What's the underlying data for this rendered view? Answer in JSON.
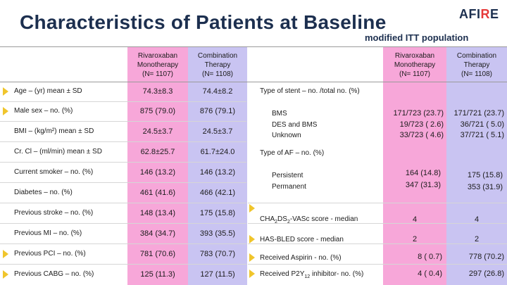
{
  "title": "Characteristics of Patients at Baseline",
  "subtitle": "modified ITT population",
  "logo": {
    "part1": "AFI",
    "part2": "R",
    "part3": "E"
  },
  "headers": {
    "mono": [
      "Rivaroxaban",
      "Monotherapy",
      "(N= 1107)"
    ],
    "combo": [
      "Combination",
      "Therapy",
      "(N= 1108)"
    ]
  },
  "left_rows": [
    {
      "label": "Age – (yr) mean ± SD",
      "mono": "74.3±8.3",
      "combo": "74.4±8.2"
    },
    {
      "label": "Male sex – no. (%)",
      "mono": "875 (79.0)",
      "combo": "876 (79.1)"
    },
    {
      "label": "BMI – (kg/m²) mean ± SD",
      "mono": "24.5±3.7",
      "combo": "24.5±3.7"
    },
    {
      "label": "Cr. Cl – (ml/min) mean ± SD",
      "mono": "62.8±25.7",
      "combo": "61.7±24.0"
    },
    {
      "label": "Current smoker – no. (%)",
      "mono": "146 (13.2)",
      "combo": "146 (13.2)"
    },
    {
      "label": "Diabetes – no. (%)",
      "mono": "461 (41.6)",
      "combo": "466 (42.1)"
    },
    {
      "label": "Previous stroke – no. (%)",
      "mono": "148 (13.4)",
      "combo": "175 (15.8)"
    },
    {
      "label": "Previous MI – no. (%)",
      "mono": "384 (34.7)",
      "combo": "393 (35.5)"
    },
    {
      "label": "Previous PCI – no. (%)",
      "mono": "781 (70.6)",
      "combo": "783 (70.7)"
    },
    {
      "label": "Previous CABG – no. (%)",
      "mono": "125 (11.3)",
      "combo": "127 (11.5)"
    }
  ],
  "stent": {
    "heading": "Type of stent – no. /total no. (%)",
    "rows": [
      {
        "label": "BMS",
        "mono": "171/723 (23.7)",
        "combo": "171/721 (23.7)"
      },
      {
        "label": "DES and BMS",
        "mono": "19/723 ( 2.6)",
        "combo": "36/721 ( 5.0)"
      },
      {
        "label": "Unknown",
        "mono": "33/723 ( 4.6)",
        "combo": "37/721 ( 5.1)"
      }
    ]
  },
  "af": {
    "heading": "Type of AF – no. (%)",
    "rows": [
      {
        "label": "Persistent",
        "mono": "164 (14.8)",
        "combo": "175 (15.8)"
      },
      {
        "label": "Permanent",
        "mono": "347 (31.3)",
        "combo": "353 (31.9)"
      }
    ]
  },
  "scores": [
    {
      "label_a": "CHA",
      "sub_a": "2",
      "label_b": "DS",
      "sub_b": "2",
      "label_c": "-VASc score - median",
      "mono": "4",
      "combo": "4"
    },
    {
      "label": "HAS-BLED score - median",
      "mono": "2",
      "combo": "2"
    }
  ],
  "meds": [
    {
      "label": "Received Aspirin - no. (%)",
      "mono": "8 ( 0.7)",
      "combo": "778 (70.2)"
    },
    {
      "label_a": "Received P2Y",
      "sub": "12",
      "label_b": " inhibitor- no. (%)",
      "mono": "4 ( 0.4)",
      "combo": "297 (26.8)"
    }
  ],
  "colors": {
    "mono_bg": "#f7a7d9",
    "combo_bg": "#c9c4f2",
    "arrow": "#f0c52c",
    "title": "#1c2f4f"
  }
}
